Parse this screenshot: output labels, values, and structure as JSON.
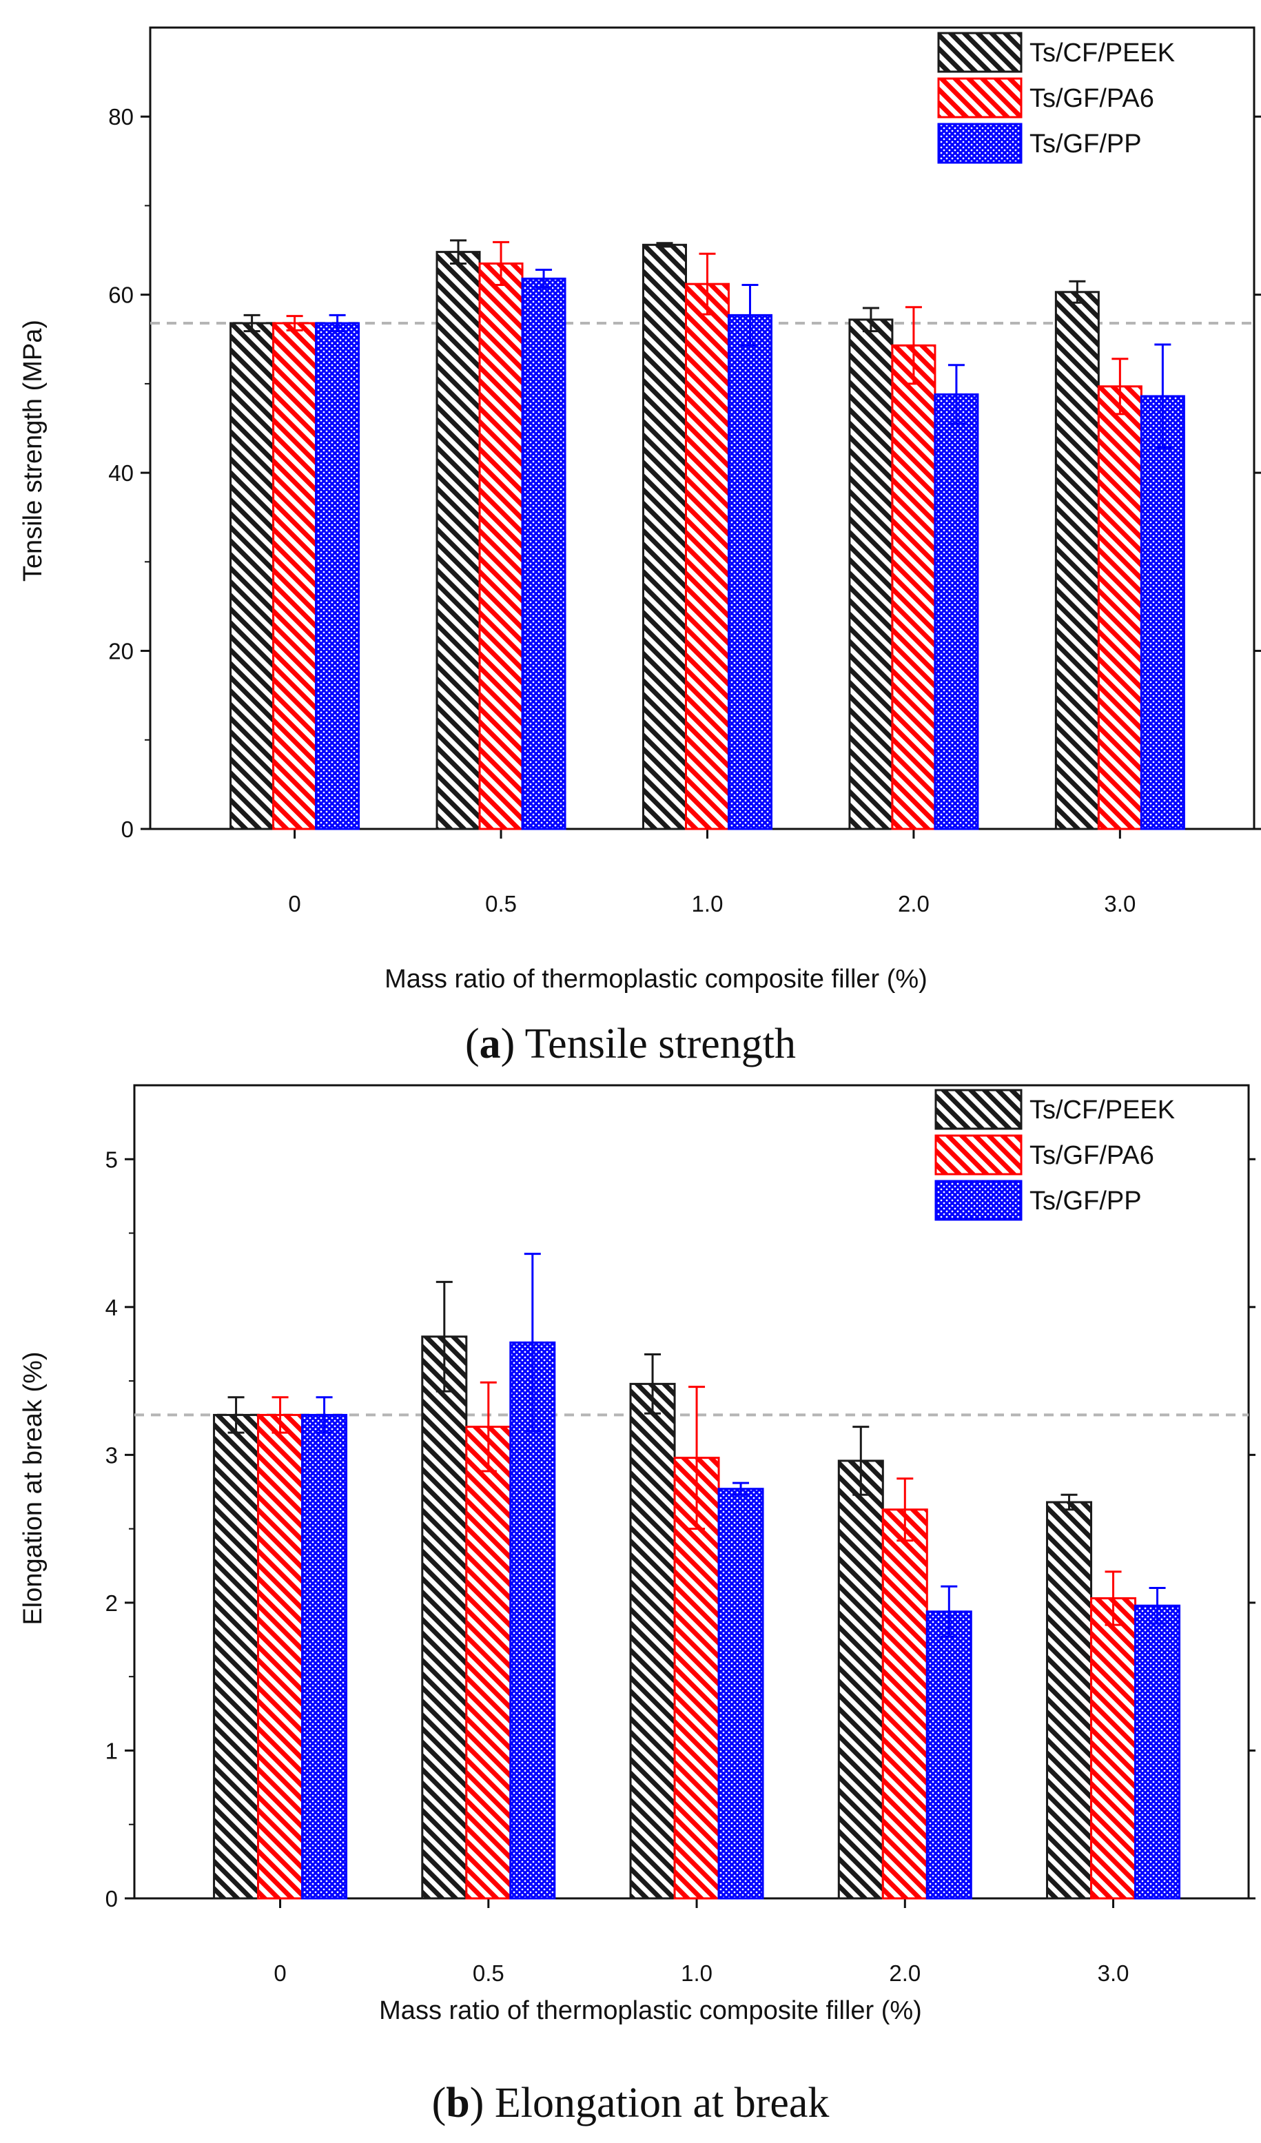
{
  "chart_data": [
    {
      "type": "bar",
      "panel": "a",
      "caption_letter": "a",
      "caption_text": " Tensile strength",
      "title": "",
      "xlabel": "Mass ratio of thermoplastic composite filler (%)",
      "ylabel": "Tensile strength (MPa)",
      "ylim": [
        0,
        90
      ],
      "yticks": [
        0,
        20,
        40,
        60,
        80
      ],
      "categories": [
        "0",
        "0.5",
        "1.0",
        "2.0",
        "3.0"
      ],
      "reference_line": 56.8,
      "legend_position": "top-right",
      "series": [
        {
          "name": "Ts/CF/PEEK",
          "color": "#1a1a1a",
          "pattern": "hatch",
          "values": [
            56.8,
            64.8,
            65.6,
            57.2,
            60.3
          ],
          "errors": [
            0.9,
            1.3,
            0.2,
            1.3,
            1.2
          ]
        },
        {
          "name": "Ts/GF/PA6",
          "color": "#ff0000",
          "pattern": "hatch",
          "values": [
            56.8,
            63.5,
            61.2,
            54.3,
            49.7
          ],
          "errors": [
            0.8,
            2.4,
            3.4,
            4.3,
            3.1
          ]
        },
        {
          "name": "Ts/GF/PP",
          "color": "#0000ff",
          "pattern": "dots",
          "values": [
            56.8,
            61.8,
            57.7,
            48.8,
            48.6
          ],
          "errors": [
            0.9,
            1.0,
            3.4,
            3.3,
            5.8
          ]
        }
      ]
    },
    {
      "type": "bar",
      "panel": "b",
      "caption_letter": "b",
      "caption_text": " Elongation at break",
      "title": "",
      "xlabel": "Mass ratio of thermoplastic composite filler (%)",
      "ylabel": "Elongation at break (%)",
      "ylim": [
        0,
        5.5
      ],
      "yticks": [
        0,
        1,
        2,
        3,
        4,
        5
      ],
      "categories": [
        "0",
        "0.5",
        "1.0",
        "2.0",
        "3.0"
      ],
      "reference_line": 3.27,
      "legend_position": "top-right",
      "series": [
        {
          "name": "Ts/CF/PEEK",
          "color": "#1a1a1a",
          "pattern": "hatch",
          "values": [
            3.27,
            3.8,
            3.48,
            2.96,
            2.68
          ],
          "errors": [
            0.12,
            0.37,
            0.2,
            0.23,
            0.05
          ]
        },
        {
          "name": "Ts/GF/PA6",
          "color": "#ff0000",
          "pattern": "hatch",
          "values": [
            3.27,
            3.19,
            2.98,
            2.63,
            2.03
          ],
          "errors": [
            0.12,
            0.3,
            0.48,
            0.21,
            0.18
          ]
        },
        {
          "name": "Ts/GF/PP",
          "color": "#0000ff",
          "pattern": "dots",
          "values": [
            3.27,
            3.76,
            2.77,
            1.94,
            1.98
          ],
          "errors": [
            0.12,
            0.6,
            0.04,
            0.17,
            0.12
          ]
        }
      ]
    }
  ]
}
